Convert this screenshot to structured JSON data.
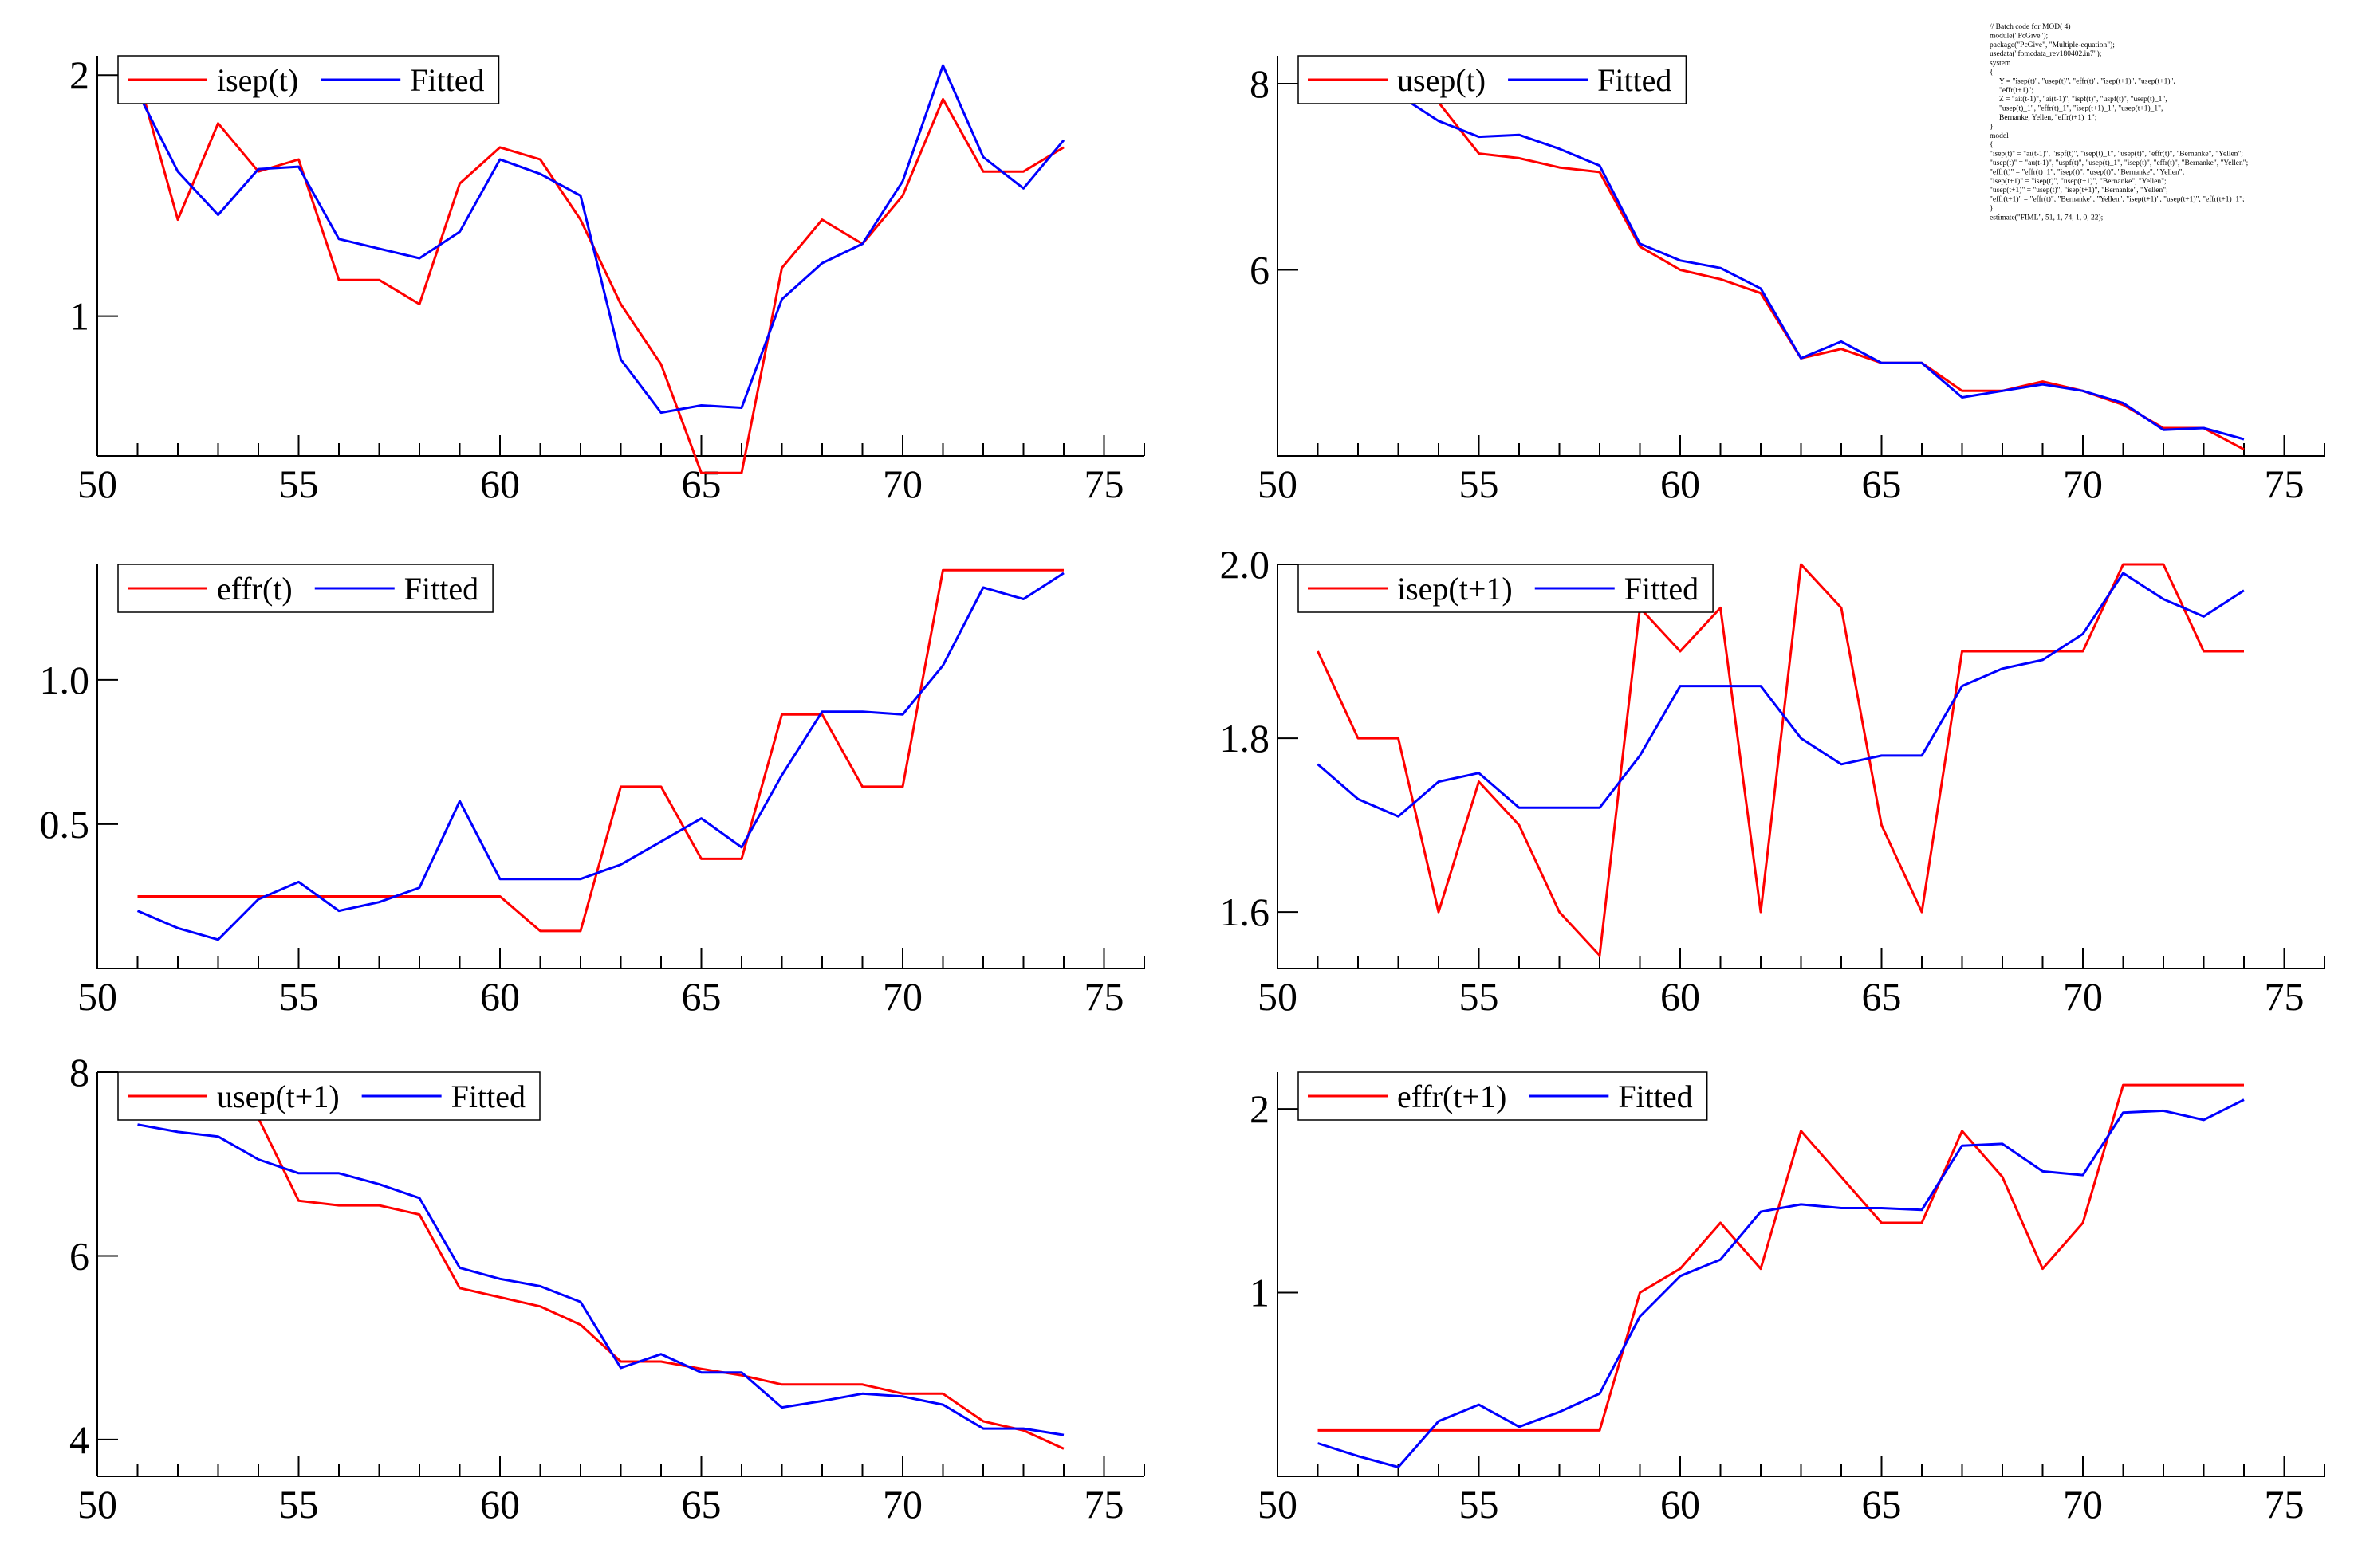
{
  "colors": {
    "actual": "#ff0000",
    "fitted": "#0000ff",
    "axis": "#000000"
  },
  "batch_code": [
    "// Batch code for MOD( 4)",
    "module(\"PcGive\");",
    "package(\"PcGive\", \"Multiple-equation\");",
    "usedata(\"fomcdata_rev180402.in7\");",
    "system",
    "{",
    "    Y = \"isep(t)\", \"usep(t)\", \"effr(t)\", \"isep(t+1)\", \"usep(t+1)\",",
    "       \"effr(t+1)\";",
    "    Z = \"ait(t-1)\", \"ai(t-1)\", \"ispf(t)\", \"uspf(t)\", \"usep(t)_1\",",
    "       \"usep(t)_1\", \"effr(t)_1\", \"isep(t+1)_1\", \"usep(t+1)_1\",",
    "       Bernanke, Yellen, \"effr(t+1)_1\";",
    "}",
    "model",
    "{",
    "\"isep(t)\" = \"ai(t-1)\", \"ispf(t)\", \"isep(t)_1\", \"usep(t)\", \"effr(t)\", \"Bernanke\", \"Yellen\";",
    "\"usep(t)\" = \"au(t-1)\", \"uspf(t)\", \"usep(t)_1\", \"isep(t)\", \"effr(t)\", \"Bernanke\", \"Yellen\";",
    "\"effr(t)\" = \"effr(t)_1\", \"isep(t)\", \"usep(t)\", \"Bernanke\", \"Yellen\";",
    "\"isep(t+1)\" = \"isep(t)\", \"usep(t+1)\", \"Bernanke\", \"Yellen\";",
    "\"usep(t+1)\" = \"usep(t)\", \"isep(t+1)\", \"Bernanke\", \"Yellen\";",
    "\"effr(t+1)\" = \"effr(t)\", \"Bernanke\", \"Yellen\", \"isep(t+1)\", \"usep(t+1)\", \"effr(t+1)_1\";",
    "}",
    "estimate(\"FIML\", 51, 1, 74, 1, 0, 22);"
  ],
  "chart_data": [
    {
      "type": "line",
      "panel": "top-left",
      "x": [
        51,
        52,
        53,
        54,
        55,
        56,
        57,
        58,
        59,
        60,
        61,
        62,
        63,
        64,
        65,
        66,
        67,
        68,
        69,
        70,
        71,
        72,
        73,
        74
      ],
      "xlim": [
        50,
        76
      ],
      "ylim": [
        0.42,
        2.08
      ],
      "xticks": [
        50,
        55,
        60,
        65,
        70,
        75
      ],
      "yticks": [
        1,
        2
      ],
      "ytick_labels": [
        "1",
        "2"
      ],
      "legend_position": "top-left",
      "series": [
        {
          "name": "isep(t)",
          "color": "#ff0000",
          "values": [
            2.0,
            1.4,
            1.8,
            1.6,
            1.65,
            1.15,
            1.15,
            1.05,
            1.55,
            1.7,
            1.65,
            1.4,
            1.05,
            0.8,
            0.35,
            0.35,
            1.2,
            1.4,
            1.3,
            1.5,
            1.9,
            1.6,
            1.6,
            1.7
          ]
        },
        {
          "name": "Fitted",
          "color": "#0000ff",
          "values": [
            1.93,
            1.6,
            1.42,
            1.61,
            1.62,
            1.32,
            1.28,
            1.24,
            1.35,
            1.65,
            1.59,
            1.5,
            0.82,
            0.6,
            0.63,
            0.62,
            1.07,
            1.22,
            1.3,
            1.56,
            2.04,
            1.66,
            1.53,
            1.73
          ]
        }
      ]
    },
    {
      "type": "line",
      "panel": "top-right",
      "x": [
        51,
        52,
        53,
        54,
        55,
        56,
        57,
        58,
        59,
        60,
        61,
        62,
        63,
        64,
        65,
        66,
        67,
        68,
        69,
        70,
        71,
        72,
        73,
        74
      ],
      "xlim": [
        50,
        76
      ],
      "ylim": [
        4.0,
        8.3
      ],
      "xticks": [
        50,
        55,
        60,
        65,
        70,
        75
      ],
      "yticks": [
        6,
        8
      ],
      "ytick_labels": [
        "6",
        "8"
      ],
      "legend_position": "top-left",
      "series": [
        {
          "name": "usep(t)",
          "color": "#ff0000",
          "values": [
            8.0,
            8.1,
            8.2,
            7.8,
            7.25,
            7.2,
            7.1,
            7.05,
            6.25,
            6.0,
            5.9,
            5.75,
            5.05,
            5.15,
            5.0,
            5.0,
            4.7,
            4.7,
            4.8,
            4.7,
            4.55,
            4.3,
            4.3,
            4.07
          ]
        },
        {
          "name": "Fitted",
          "color": "#0000ff",
          "values": [
            7.98,
            7.9,
            7.88,
            7.6,
            7.43,
            7.45,
            7.3,
            7.12,
            6.28,
            6.1,
            6.02,
            5.8,
            5.05,
            5.23,
            5.0,
            5.0,
            4.63,
            4.7,
            4.77,
            4.7,
            4.57,
            4.28,
            4.3,
            4.18
          ]
        }
      ]
    },
    {
      "type": "line",
      "panel": "middle-left",
      "x": [
        51,
        52,
        53,
        54,
        55,
        56,
        57,
        58,
        59,
        60,
        61,
        62,
        63,
        64,
        65,
        66,
        67,
        68,
        69,
        70,
        71,
        72,
        73,
        74
      ],
      "xlim": [
        50,
        76
      ],
      "ylim": [
        0.0,
        1.4
      ],
      "xticks": [
        50,
        55,
        60,
        65,
        70,
        75
      ],
      "yticks": [
        0.5,
        1.0
      ],
      "ytick_labels": [
        "0.5",
        "1.0"
      ],
      "legend_position": "top-left",
      "series": [
        {
          "name": "effr(t)",
          "color": "#ff0000",
          "values": [
            0.25,
            0.25,
            0.25,
            0.25,
            0.25,
            0.25,
            0.25,
            0.25,
            0.25,
            0.25,
            0.13,
            0.13,
            0.63,
            0.63,
            0.38,
            0.38,
            0.88,
            0.88,
            0.63,
            0.63,
            1.38,
            1.38,
            1.38,
            1.38
          ]
        },
        {
          "name": "Fitted",
          "color": "#0000ff",
          "values": [
            0.2,
            0.14,
            0.1,
            0.24,
            0.3,
            0.2,
            0.23,
            0.28,
            0.58,
            0.31,
            0.31,
            0.31,
            0.36,
            0.44,
            0.52,
            0.42,
            0.67,
            0.89,
            0.89,
            0.88,
            1.05,
            1.32,
            1.28,
            1.37
          ]
        }
      ]
    },
    {
      "type": "line",
      "panel": "middle-right",
      "x": [
        51,
        52,
        53,
        54,
        55,
        56,
        57,
        58,
        59,
        60,
        61,
        62,
        63,
        64,
        65,
        66,
        67,
        68,
        69,
        70,
        71,
        72,
        73,
        74
      ],
      "xlim": [
        50,
        76
      ],
      "ylim": [
        1.535,
        2.0
      ],
      "xticks": [
        50,
        55,
        60,
        65,
        70,
        75
      ],
      "yticks": [
        1.6,
        1.8,
        2.0
      ],
      "ytick_labels": [
        "1.6",
        "1.8",
        "2.0"
      ],
      "legend_position": "top-left",
      "series": [
        {
          "name": "isep(t+1)",
          "color": "#ff0000",
          "values": [
            1.9,
            1.8,
            1.8,
            1.6,
            1.75,
            1.7,
            1.6,
            1.55,
            1.95,
            1.9,
            1.95,
            1.6,
            2.0,
            1.95,
            1.7,
            1.6,
            1.9,
            1.9,
            1.9,
            1.9,
            2.0,
            2.0,
            1.9,
            1.9
          ]
        },
        {
          "name": "Fitted",
          "color": "#0000ff",
          "values": [
            1.77,
            1.73,
            1.71,
            1.75,
            1.76,
            1.72,
            1.72,
            1.72,
            1.78,
            1.86,
            1.86,
            1.86,
            1.8,
            1.77,
            1.78,
            1.78,
            1.86,
            1.88,
            1.89,
            1.92,
            1.99,
            1.96,
            1.94,
            1.97
          ]
        }
      ]
    },
    {
      "type": "line",
      "panel": "bottom-left",
      "x": [
        51,
        52,
        53,
        54,
        55,
        56,
        57,
        58,
        59,
        60,
        61,
        62,
        63,
        64,
        65,
        66,
        67,
        68,
        69,
        70,
        71,
        72,
        73,
        74
      ],
      "xlim": [
        50,
        76
      ],
      "ylim": [
        3.6,
        8.0
      ],
      "xticks": [
        50,
        55,
        60,
        65,
        70,
        75
      ],
      "yticks": [
        4,
        6,
        8
      ],
      "ytick_labels": [
        "4",
        "6",
        "8"
      ],
      "legend_position": "top-left",
      "series": [
        {
          "name": "usep(t+1)",
          "color": "#ff0000",
          "values": [
            7.5,
            7.8,
            7.7,
            7.5,
            6.6,
            6.55,
            6.55,
            6.45,
            5.65,
            5.55,
            5.45,
            5.25,
            4.85,
            4.85,
            4.77,
            4.7,
            4.6,
            4.6,
            4.6,
            4.5,
            4.5,
            4.2,
            4.1,
            3.9
          ]
        },
        {
          "name": "Fitted",
          "color": "#0000ff",
          "values": [
            7.43,
            7.35,
            7.3,
            7.05,
            6.9,
            6.9,
            6.78,
            6.63,
            5.87,
            5.75,
            5.67,
            5.5,
            4.78,
            4.93,
            4.73,
            4.73,
            4.35,
            4.42,
            4.5,
            4.47,
            4.38,
            4.12,
            4.12,
            4.05
          ]
        }
      ]
    },
    {
      "type": "line",
      "panel": "bottom-right",
      "x": [
        51,
        52,
        53,
        54,
        55,
        56,
        57,
        58,
        59,
        60,
        61,
        62,
        63,
        64,
        65,
        66,
        67,
        68,
        69,
        70,
        71,
        72,
        73,
        74
      ],
      "xlim": [
        50,
        76
      ],
      "ylim": [
        0.0,
        2.2
      ],
      "xticks": [
        50,
        55,
        60,
        65,
        70,
        75
      ],
      "yticks": [
        1,
        2
      ],
      "ytick_labels": [
        "1",
        "2"
      ],
      "legend_position": "top-left",
      "series": [
        {
          "name": "effr(t+1)",
          "color": "#ff0000",
          "values": [
            0.25,
            0.25,
            0.25,
            0.25,
            0.25,
            0.25,
            0.25,
            0.25,
            1.0,
            1.13,
            1.38,
            1.13,
            1.88,
            1.63,
            1.38,
            1.38,
            1.88,
            1.63,
            1.13,
            1.38,
            2.13,
            2.13,
            2.13,
            2.13
          ]
        },
        {
          "name": "Fitted",
          "color": "#0000ff",
          "values": [
            0.18,
            0.11,
            0.05,
            0.3,
            0.39,
            0.27,
            0.35,
            0.45,
            0.87,
            1.09,
            1.18,
            1.44,
            1.48,
            1.46,
            1.46,
            1.45,
            1.8,
            1.81,
            1.66,
            1.64,
            1.98,
            1.99,
            1.94,
            2.05
          ]
        }
      ]
    }
  ]
}
